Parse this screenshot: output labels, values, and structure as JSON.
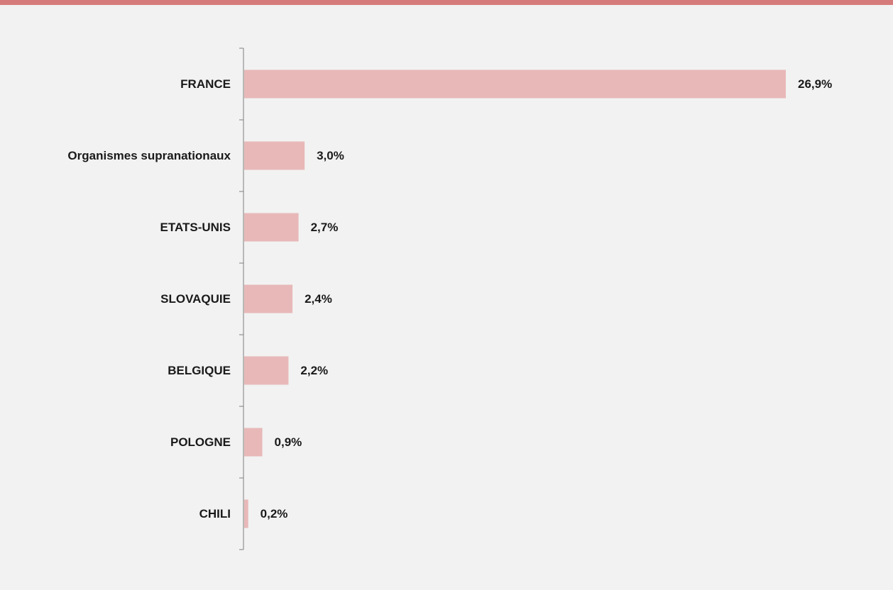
{
  "chart_data": {
    "type": "bar",
    "orientation": "horizontal",
    "categories": [
      "FRANCE",
      "Organismes supranationaux",
      "ETATS-UNIS",
      "SLOVAQUIE",
      "BELGIQUE",
      "POLOGNE",
      "CHILI"
    ],
    "values": [
      26.9,
      3.0,
      2.7,
      2.4,
      2.2,
      0.9,
      0.2
    ],
    "value_labels": [
      "26,9%",
      "3,0%",
      "2,7%",
      "2,4%",
      "2,2%",
      "0,9%",
      "0,2%"
    ],
    "color": "#e8b8b8"
  }
}
